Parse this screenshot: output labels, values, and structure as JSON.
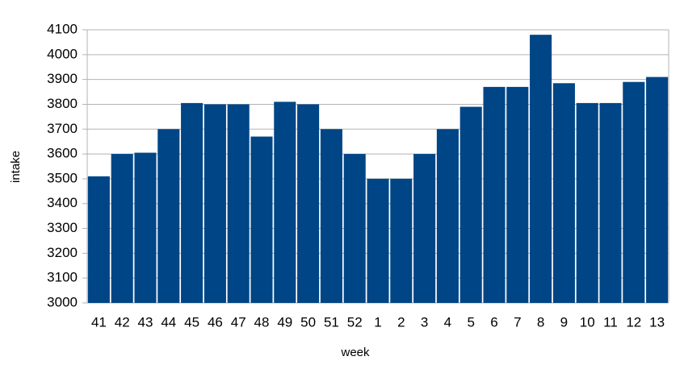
{
  "chart_data": {
    "type": "bar",
    "x_label": "week",
    "y_label": "intake",
    "categories": [
      "41",
      "42",
      "43",
      "44",
      "45",
      "46",
      "47",
      "48",
      "49",
      "50",
      "51",
      "52",
      "1",
      "2",
      "3",
      "4",
      "5",
      "6",
      "7",
      "8",
      "9",
      "10",
      "11",
      "12",
      "13"
    ],
    "values": [
      3510,
      3600,
      3605,
      3700,
      3805,
      3800,
      3800,
      3670,
      3810,
      3800,
      3700,
      3600,
      3500,
      3500,
      3600,
      3700,
      3790,
      3870,
      3870,
      4080,
      3885,
      3805,
      3805,
      3890,
      3910
    ],
    "color": "#004586",
    "ylim": [
      3000,
      4100
    ],
    "yticks": [
      3000,
      3100,
      3200,
      3300,
      3400,
      3500,
      3600,
      3700,
      3800,
      3900,
      4000,
      4100
    ],
    "grid": true
  }
}
